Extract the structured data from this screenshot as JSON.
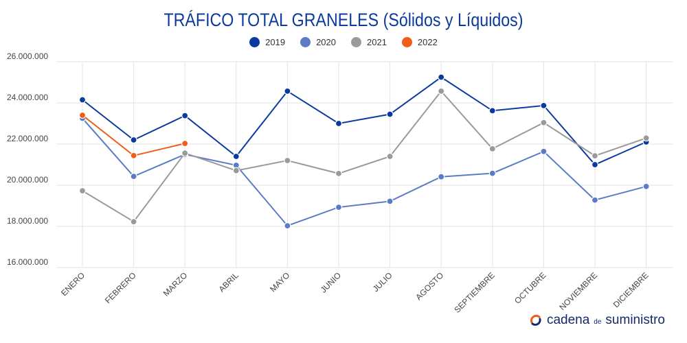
{
  "title": "TRÁFICO TOTAL GRANELES (Sólidos y Líquidos)",
  "brand": {
    "part1": "cadena",
    "part2": "de",
    "part3": "suministro"
  },
  "chart_data": {
    "type": "line",
    "title": "TRÁFICO TOTAL GRANELES (Sólidos y Líquidos)",
    "xlabel": "",
    "ylabel": "",
    "categories": [
      "ENERO",
      "FEBRERO",
      "MARZO",
      "ABRIL",
      "MAYO",
      "JUNIO",
      "JULIO",
      "AGOSTO",
      "SEPTIEMBRE",
      "OCTUBRE",
      "NOVIEMBRE",
      "DICIEMBRE"
    ],
    "ylim": [
      16000000,
      26000000
    ],
    "yticks": [
      16000000,
      18000000,
      20000000,
      22000000,
      24000000,
      26000000
    ],
    "ytick_labels": [
      "16.000.000",
      "18.000.000",
      "20.000.000",
      "22.000.000",
      "24.000.000",
      "26.000.000"
    ],
    "grid": true,
    "legend_position": "top-center",
    "series": [
      {
        "name": "2019",
        "color": "#0b3a9e",
        "values": [
          24150000,
          22200000,
          23380000,
          21400000,
          24570000,
          23000000,
          23450000,
          25250000,
          23620000,
          23870000,
          21000000,
          22100000
        ]
      },
      {
        "name": "2020",
        "color": "#5b7bc6",
        "values": [
          23250000,
          20430000,
          21500000,
          20970000,
          18030000,
          18930000,
          19220000,
          20410000,
          20580000,
          21640000,
          19280000,
          19940000
        ]
      },
      {
        "name": "2021",
        "color": "#9a9a9a",
        "values": [
          19730000,
          18230000,
          21560000,
          20710000,
          21200000,
          20570000,
          21400000,
          24570000,
          21770000,
          23040000,
          21430000,
          22290000
        ]
      },
      {
        "name": "2022",
        "color": "#f25c19",
        "values": [
          23400000,
          21440000,
          22030000,
          null,
          null,
          null,
          null,
          null,
          null,
          null,
          null,
          null
        ]
      }
    ]
  }
}
